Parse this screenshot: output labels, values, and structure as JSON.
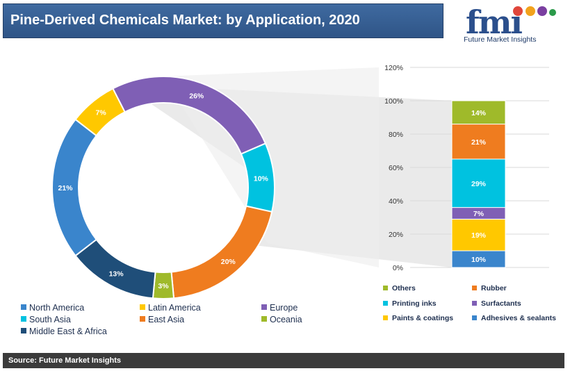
{
  "title": "Pine-Derived Chemicals Market: by Application, 2020",
  "logo": {
    "text": "fmi",
    "caption": "Future Market Insights"
  },
  "source": "Source: Future Market Insights",
  "colors": {
    "title_bar": "#2f5587",
    "north_america": "#3a85cc",
    "latin_america": "#ffc800",
    "europe": "#7f5fb5",
    "south_asia": "#00c2e0",
    "east_asia": "#ef7c1f",
    "oceania": "#9fba2a",
    "middle_east_africa": "#1f4e79"
  },
  "chart_data": [
    {
      "type": "pie",
      "variant": "donut",
      "labels": [
        "Europe",
        "South Asia",
        "East Asia",
        "Oceania",
        "Middle East & Africa",
        "North America",
        "Latin America"
      ],
      "values": [
        26,
        10,
        20,
        3,
        13,
        21,
        7
      ],
      "data_labels": [
        "26%",
        "10%",
        "20%",
        "3%",
        "13%",
        "21%",
        "7%"
      ],
      "colors": [
        "#7f5fb5",
        "#00c2e0",
        "#ef7c1f",
        "#9fba2a",
        "#1f4e79",
        "#3a85cc",
        "#ffc800"
      ],
      "legend_placement": "bottom"
    },
    {
      "type": "bar",
      "variant": "stacked",
      "categories": [
        ""
      ],
      "series": [
        {
          "name": "Adhesives & sealants",
          "values": [
            10
          ],
          "color": "#3a85cc"
        },
        {
          "name": "Paints & coatings",
          "values": [
            19
          ],
          "color": "#ffc800"
        },
        {
          "name": "Surfactants",
          "values": [
            7
          ],
          "color": "#7f5fb5"
        },
        {
          "name": "Printing inks",
          "values": [
            29
          ],
          "color": "#00c2e0"
        },
        {
          "name": "Rubber",
          "values": [
            21
          ],
          "color": "#ef7c1f"
        },
        {
          "name": "Others",
          "values": [
            14
          ],
          "color": "#9fba2a"
        }
      ],
      "data_labels": [
        "10%",
        "19%",
        "7%",
        "29%",
        "21%",
        "14%"
      ],
      "ylim": [
        0,
        120
      ],
      "yticks": [
        "0%",
        "20%",
        "40%",
        "60%",
        "80%",
        "100%",
        "120%"
      ],
      "grid": true,
      "legend_placement": "bottom"
    }
  ],
  "legend_left": [
    [
      "North America",
      "#3a85cc"
    ],
    [
      "Latin America",
      "#ffc800"
    ],
    [
      "Europe",
      "#7f5fb5"
    ],
    [
      "South Asia",
      "#00c2e0"
    ],
    [
      "East Asia",
      "#ef7c1f"
    ],
    [
      "Oceania",
      "#9fba2a"
    ],
    [
      "Middle East & Africa",
      "#1f4e79"
    ]
  ],
  "legend_right": [
    [
      "Others",
      "#9fba2a"
    ],
    [
      "Rubber",
      "#ef7c1f"
    ],
    [
      "Printing inks",
      "#00c2e0"
    ],
    [
      "Surfactants",
      "#7f5fb5"
    ],
    [
      "Paints & coatings",
      "#ffc800"
    ],
    [
      "Adhesives & sealants",
      "#3a85cc"
    ]
  ]
}
